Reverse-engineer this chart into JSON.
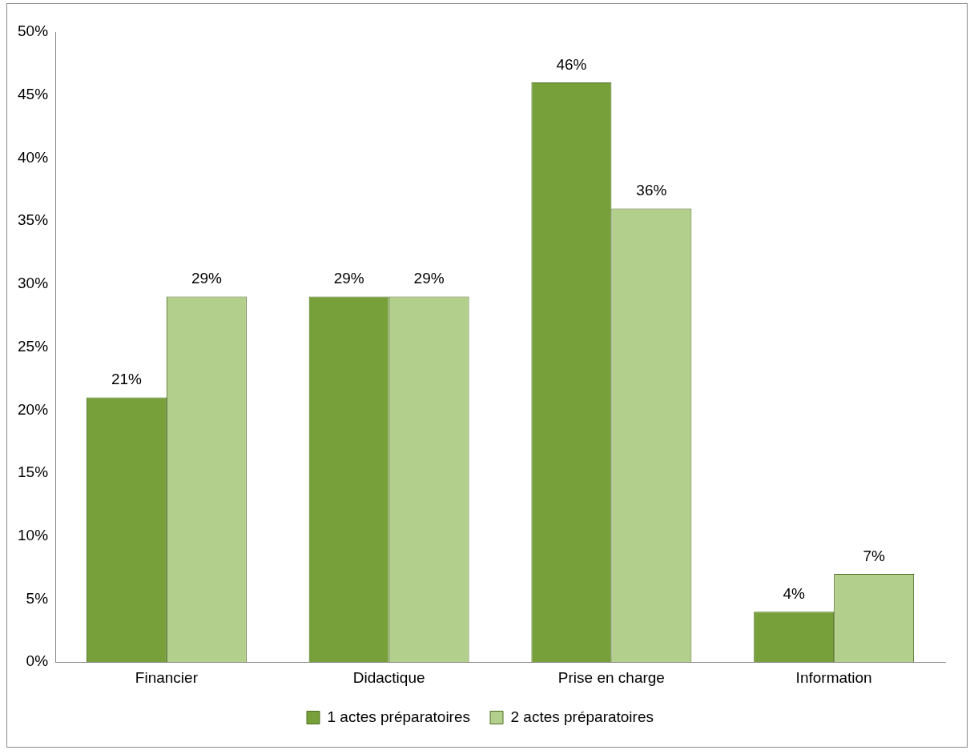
{
  "chart_data": {
    "type": "bar",
    "categories": [
      "Financier",
      "Didactique",
      "Prise en charge",
      "Information"
    ],
    "series": [
      {
        "name": "1 actes préparatoires",
        "color": "#77a03a",
        "values": [
          21,
          29,
          46,
          4
        ],
        "value_labels": [
          "21%",
          "29%",
          "46%",
          "4%"
        ]
      },
      {
        "name": "2 actes préparatoires",
        "color": "#b3cf8c",
        "values": [
          29,
          29,
          36,
          7
        ],
        "value_labels": [
          "29%",
          "29%",
          "36%",
          "7%"
        ]
      }
    ],
    "ylim": [
      0,
      50
    ],
    "yticks": [
      {
        "value": 0,
        "label": "0%"
      },
      {
        "value": 5,
        "label": "5%"
      },
      {
        "value": 10,
        "label": "10%"
      },
      {
        "value": 15,
        "label": "15%"
      },
      {
        "value": 20,
        "label": "20%"
      },
      {
        "value": 25,
        "label": "25%"
      },
      {
        "value": 30,
        "label": "30%"
      },
      {
        "value": 35,
        "label": "35%"
      },
      {
        "value": 40,
        "label": "40%"
      },
      {
        "value": 45,
        "label": "45%"
      },
      {
        "value": 50,
        "label": "50%"
      }
    ],
    "grid": false,
    "legend": "bottom"
  }
}
